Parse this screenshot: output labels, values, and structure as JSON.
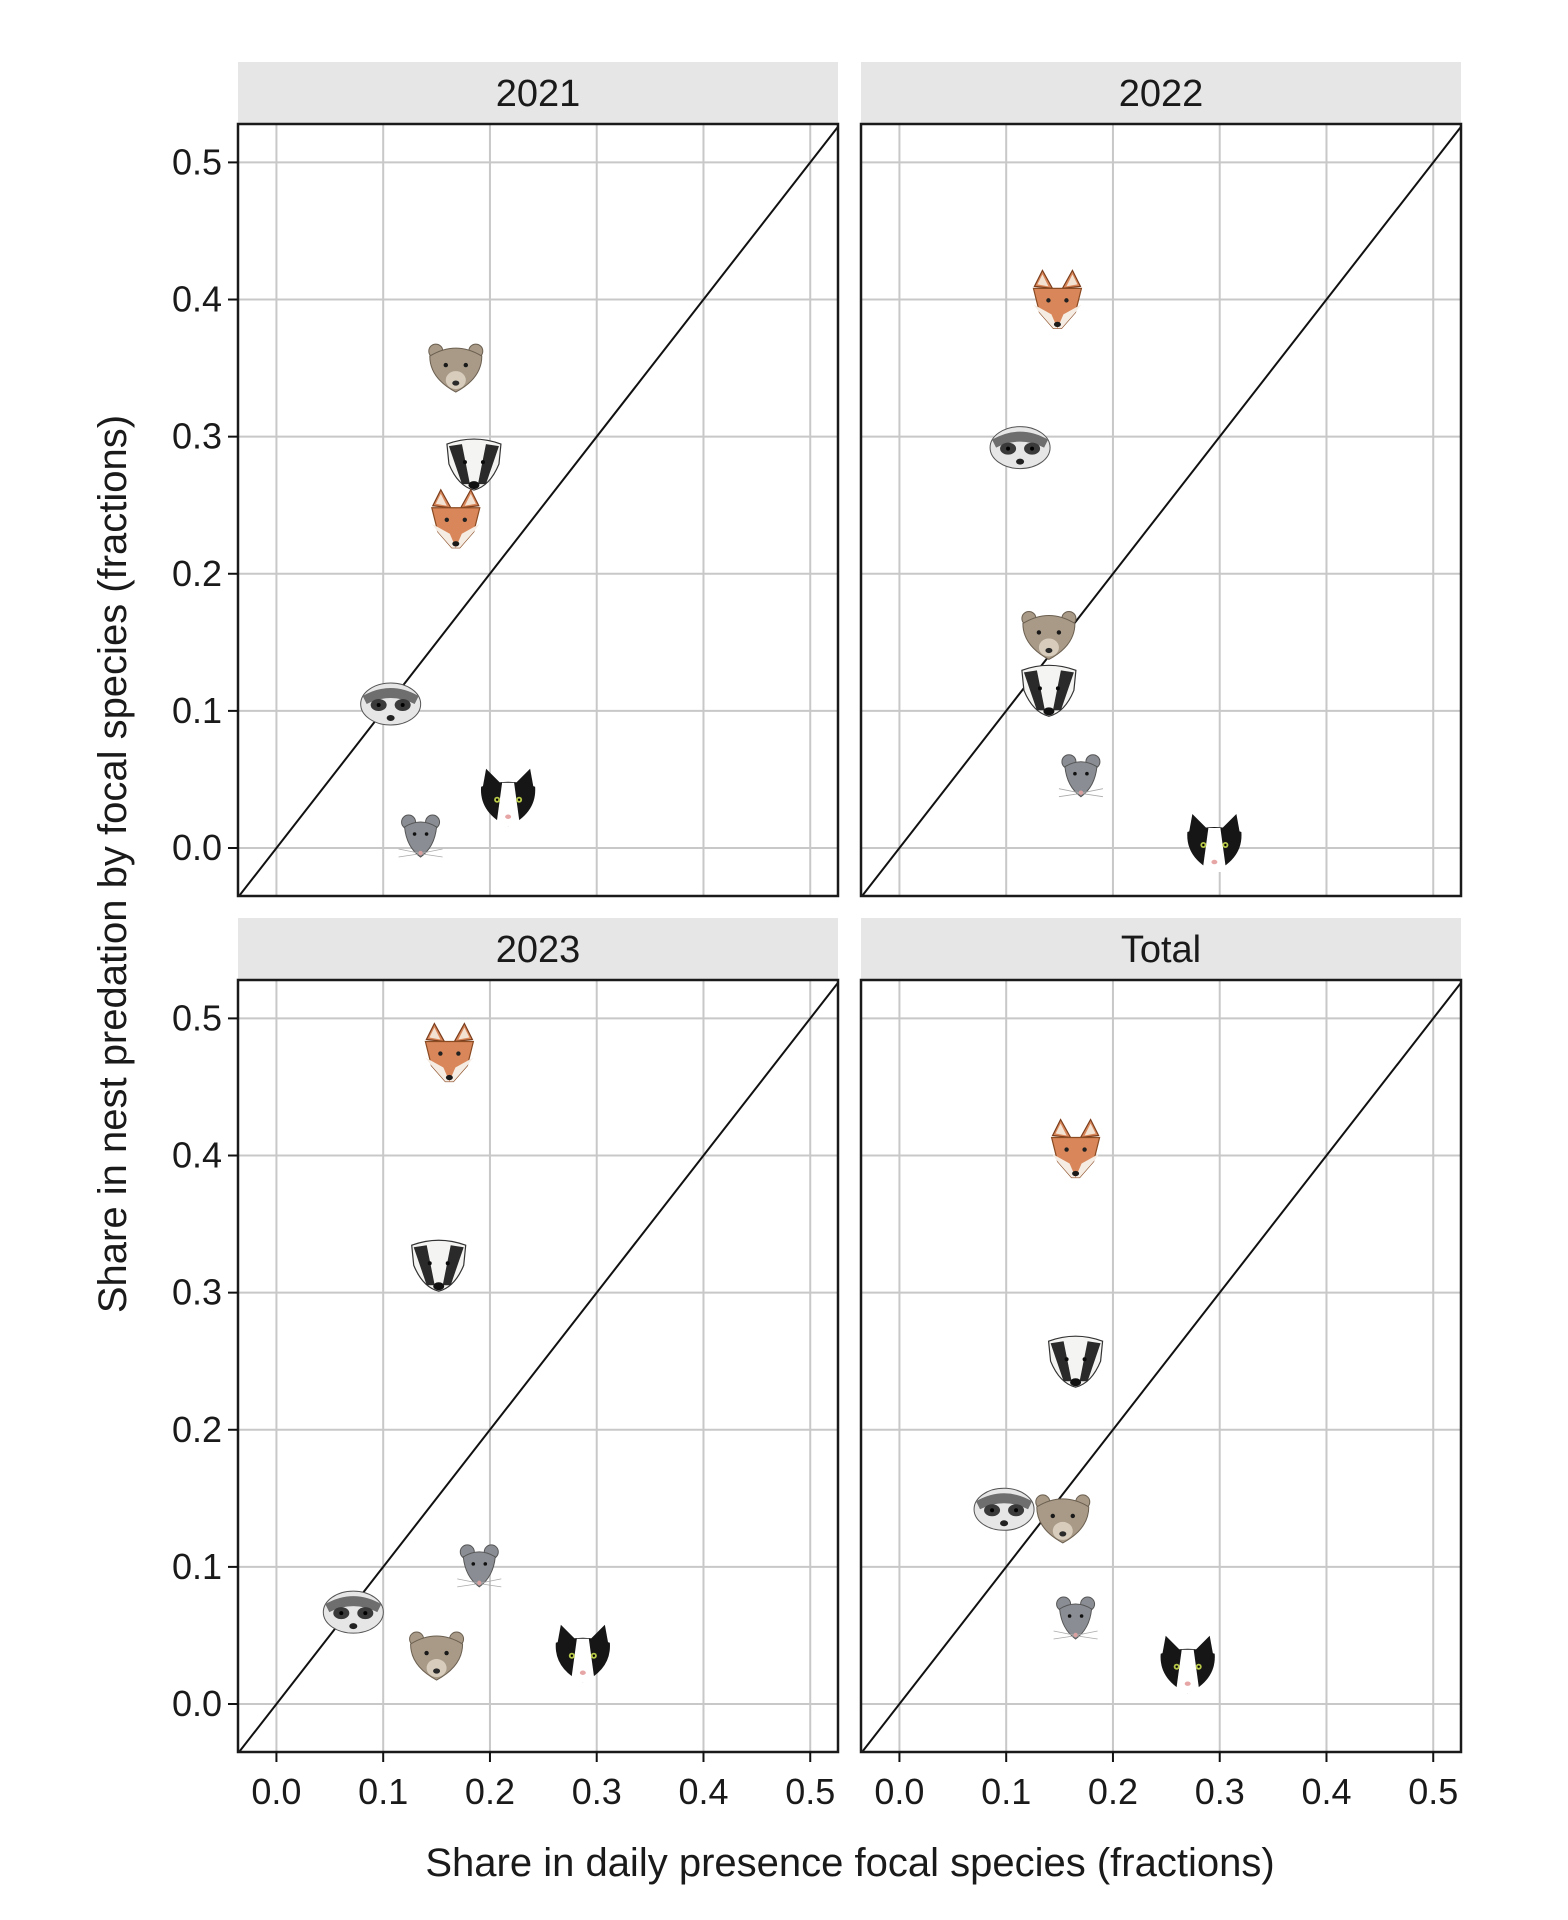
{
  "chart_data": {
    "type": "scatter",
    "facets": [
      {
        "label": "2021",
        "points": [
          {
            "species": "marten",
            "x": 0.168,
            "y": 0.35
          },
          {
            "species": "badger",
            "x": 0.185,
            "y": 0.28
          },
          {
            "species": "fox",
            "x": 0.168,
            "y": 0.235
          },
          {
            "species": "polecat",
            "x": 0.107,
            "y": 0.105
          },
          {
            "species": "cat",
            "x": 0.217,
            "y": 0.033
          },
          {
            "species": "rat",
            "x": 0.135,
            "y": 0.008
          }
        ]
      },
      {
        "label": "2022",
        "points": [
          {
            "species": "fox",
            "x": 0.148,
            "y": 0.395
          },
          {
            "species": "polecat",
            "x": 0.113,
            "y": 0.292
          },
          {
            "species": "marten",
            "x": 0.14,
            "y": 0.155
          },
          {
            "species": "badger",
            "x": 0.14,
            "y": 0.115
          },
          {
            "species": "rat",
            "x": 0.17,
            "y": 0.052
          },
          {
            "species": "cat",
            "x": 0.295,
            "y": 0.0
          }
        ]
      },
      {
        "label": "2023",
        "points": [
          {
            "species": "fox",
            "x": 0.162,
            "y": 0.47
          },
          {
            "species": "badger",
            "x": 0.152,
            "y": 0.32
          },
          {
            "species": "rat",
            "x": 0.19,
            "y": 0.1
          },
          {
            "species": "polecat",
            "x": 0.072,
            "y": 0.067
          },
          {
            "species": "marten",
            "x": 0.15,
            "y": 0.035
          },
          {
            "species": "cat",
            "x": 0.287,
            "y": 0.033
          }
        ]
      },
      {
        "label": "Total",
        "points": [
          {
            "species": "fox",
            "x": 0.165,
            "y": 0.4
          },
          {
            "species": "badger",
            "x": 0.165,
            "y": 0.25
          },
          {
            "species": "polecat",
            "x": 0.098,
            "y": 0.142
          },
          {
            "species": "marten",
            "x": 0.153,
            "y": 0.135
          },
          {
            "species": "rat",
            "x": 0.165,
            "y": 0.062
          },
          {
            "species": "cat",
            "x": 0.27,
            "y": 0.025
          }
        ]
      }
    ],
    "xlabel": "Share in daily presence focal species (fractions)",
    "ylabel": "Share in nest predation by focal species (fractions)",
    "xlim": [
      -0.036,
      0.526
    ],
    "ylim": [
      -0.035,
      0.528
    ],
    "x_ticks": [
      "0.0",
      "0.1",
      "0.2",
      "0.3",
      "0.4",
      "0.5"
    ],
    "y_ticks": [
      "0.0",
      "0.1",
      "0.2",
      "0.3",
      "0.4",
      "0.5"
    ],
    "reference_line": "y = x",
    "grid": true,
    "colors": {
      "grid": "#c8c8c8",
      "strip": "#e6e6e6",
      "panel_border": "#1a1a1a",
      "fox": "#d9875a",
      "badger": "#2a2a2a",
      "marten": "#a89a86",
      "polecat": "#6e6e6e",
      "rat": "#8a8e94",
      "cat": "#161616"
    },
    "marker_icons": {
      "fox": "fox-head-icon",
      "badger": "badger-head-icon",
      "marten": "marten-head-icon",
      "polecat": "polecat-head-icon",
      "rat": "rat-head-icon",
      "cat": "cat-head-icon"
    }
  }
}
